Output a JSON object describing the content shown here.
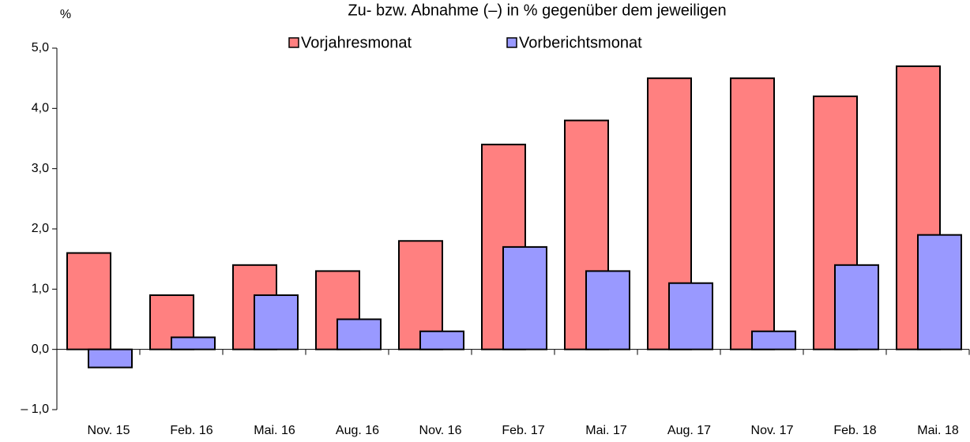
{
  "chart_data": {
    "type": "bar",
    "title": "Zu- bzw. Abnahme (–) in % gegenüber dem jeweiligen",
    "y_unit": "%",
    "categories": [
      "Nov. 15",
      "Feb. 16",
      "Mai. 16",
      "Aug. 16",
      "Nov. 16",
      "Feb. 17",
      "Mai. 17",
      "Aug. 17",
      "Nov. 17",
      "Feb. 18",
      "Mai. 18"
    ],
    "series": [
      {
        "name": "Vorjahresmonat",
        "color": "#ff8080",
        "values": [
          1.6,
          0.9,
          1.4,
          1.3,
          1.8,
          3.4,
          3.8,
          4.5,
          4.5,
          4.2,
          4.7
        ]
      },
      {
        "name": "Vorberichtsmonat",
        "color": "#9999ff",
        "values": [
          -0.3,
          0.2,
          0.9,
          0.5,
          0.3,
          1.7,
          1.3,
          1.1,
          0.3,
          1.4,
          1.9
        ]
      }
    ],
    "ylim": [
      -1,
      5
    ],
    "yticks": [
      {
        "value": -1,
        "label": "– 1,0"
      },
      {
        "value": 0,
        "label": "0,0"
      },
      {
        "value": 1,
        "label": "1,0"
      },
      {
        "value": 2,
        "label": "2,0"
      },
      {
        "value": 3,
        "label": "3,0"
      },
      {
        "value": 4,
        "label": "4,0"
      },
      {
        "value": 5,
        "label": "5,0"
      }
    ],
    "grid": false
  }
}
